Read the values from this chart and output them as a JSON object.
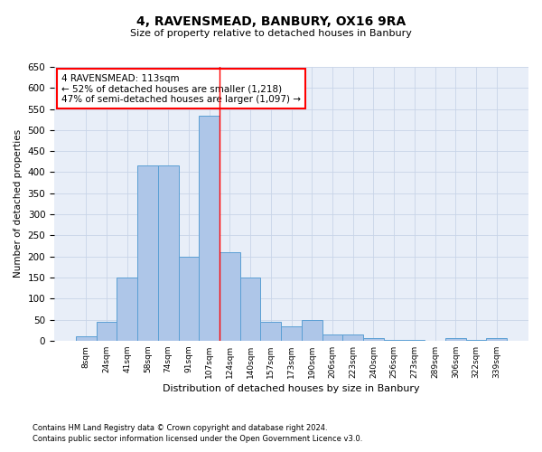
{
  "title1": "4, RAVENSMEAD, BANBURY, OX16 9RA",
  "title2": "Size of property relative to detached houses in Banbury",
  "xlabel": "Distribution of detached houses by size in Banbury",
  "ylabel": "Number of detached properties",
  "categories": [
    "8sqm",
    "24sqm",
    "41sqm",
    "58sqm",
    "74sqm",
    "91sqm",
    "107sqm",
    "124sqm",
    "140sqm",
    "157sqm",
    "173sqm",
    "190sqm",
    "206sqm",
    "223sqm",
    "240sqm",
    "256sqm",
    "273sqm",
    "289sqm",
    "306sqm",
    "322sqm",
    "339sqm"
  ],
  "values": [
    10,
    45,
    150,
    415,
    415,
    200,
    535,
    210,
    150,
    45,
    35,
    50,
    15,
    15,
    5,
    2,
    2,
    0,
    5,
    2,
    5
  ],
  "bar_color": "#aec6e8",
  "bar_edge_color": "#5a9fd4",
  "red_line_x": 6.5,
  "annotation_text": "4 RAVENSMEAD: 113sqm\n← 52% of detached houses are smaller (1,218)\n47% of semi-detached houses are larger (1,097) →",
  "annotation_box_color": "white",
  "annotation_edge_color": "red",
  "grid_color": "#c8d4e8",
  "background_color": "#e8eef8",
  "ylim": [
    0,
    650
  ],
  "yticks": [
    0,
    50,
    100,
    150,
    200,
    250,
    300,
    350,
    400,
    450,
    500,
    550,
    600,
    650
  ],
  "footer1": "Contains HM Land Registry data © Crown copyright and database right 2024.",
  "footer2": "Contains public sector information licensed under the Open Government Licence v3.0."
}
